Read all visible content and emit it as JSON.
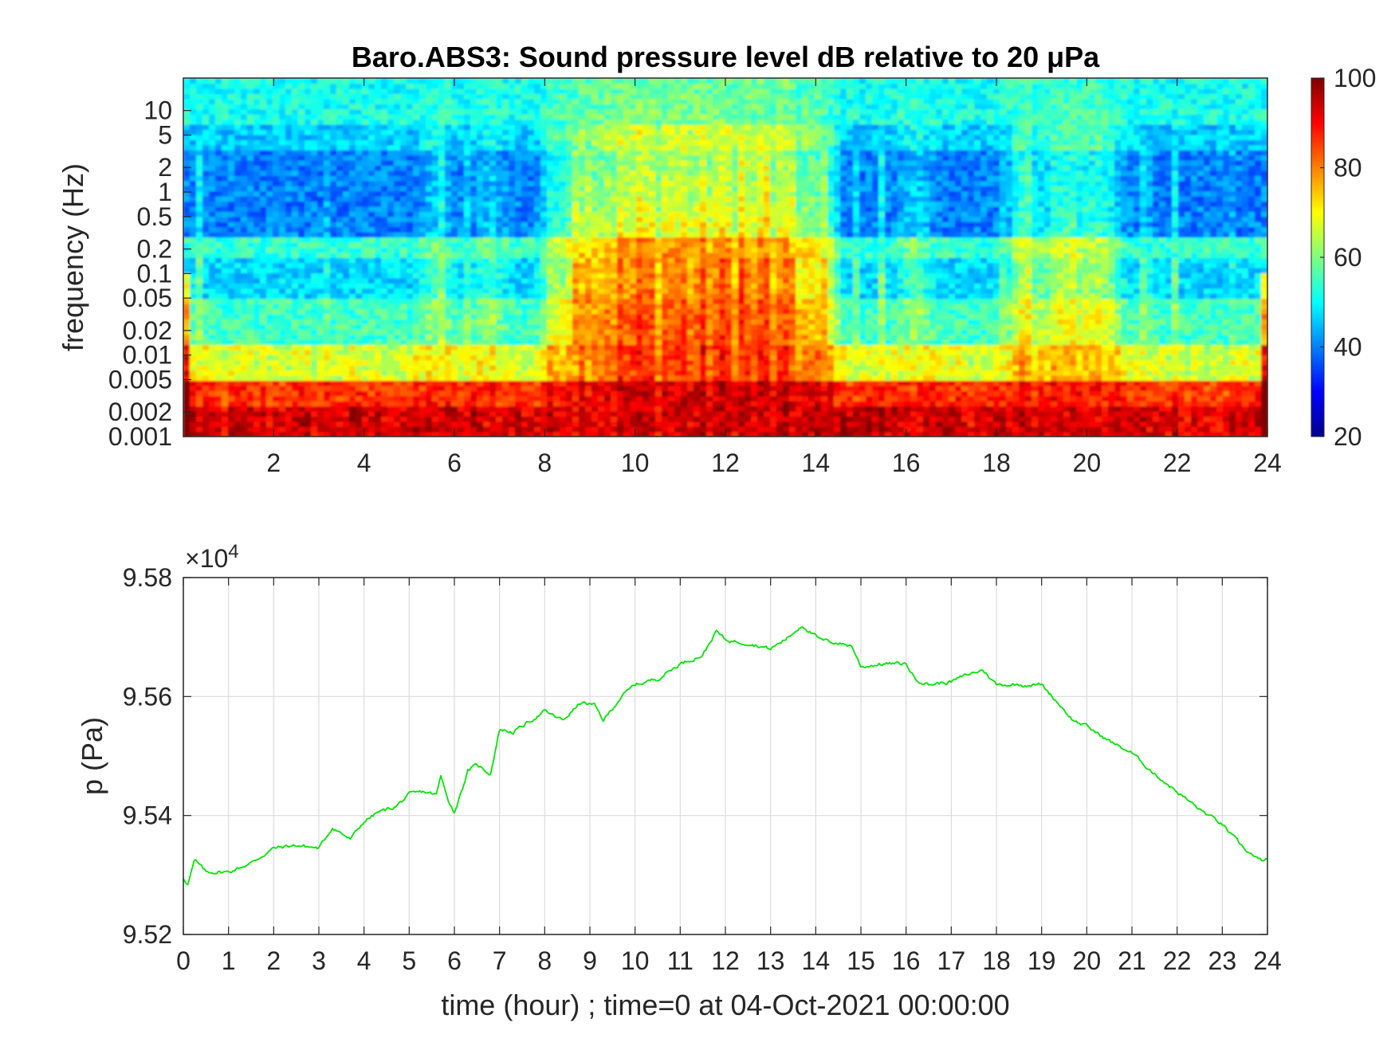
{
  "chart_data": [
    {
      "type": "heatmap",
      "title": "Baro.ABS3: Sound pressure level dB relative to 20 μPa",
      "xlabel": "",
      "ylabel": "frequency (Hz)",
      "xlim": [
        0,
        24
      ],
      "x_ticks": [
        "2",
        "4",
        "6",
        "8",
        "10",
        "12",
        "14",
        "16",
        "18",
        "20",
        "22",
        "24"
      ],
      "x_tick_values": [
        2,
        4,
        6,
        8,
        10,
        12,
        14,
        16,
        18,
        20,
        22,
        24
      ],
      "y_scale": "log",
      "ylim": [
        0.001,
        25
      ],
      "y_ticks": [
        "0.001",
        "0.002",
        "0.005",
        "0.01",
        "0.02",
        "0.05",
        "0.1",
        "0.2",
        "0.5",
        "1",
        "2",
        "5",
        "10"
      ],
      "y_tick_values": [
        0.001,
        0.002,
        0.005,
        0.01,
        0.02,
        0.05,
        0.1,
        0.2,
        0.5,
        1,
        2,
        5,
        10
      ],
      "colormap": "jet",
      "clim": [
        20,
        100
      ],
      "colorbar_ticks": [
        "20",
        "40",
        "60",
        "80",
        "100"
      ],
      "colorbar_tick_values": [
        20,
        40,
        60,
        80,
        100
      ],
      "active_window": [
        8,
        13.5
      ],
      "grid": false
    },
    {
      "type": "line",
      "xlabel": "time (hour) ; time=0 at 04-Oct-2021 00:00:00",
      "ylabel": "p (Pa)",
      "exponent_label": "×10",
      "exponent_power": "4",
      "xlim": [
        0,
        24
      ],
      "ylim": [
        95200,
        95800
      ],
      "x_ticks": [
        "0",
        "1",
        "2",
        "3",
        "4",
        "5",
        "6",
        "7",
        "8",
        "9",
        "10",
        "11",
        "12",
        "13",
        "14",
        "15",
        "16",
        "17",
        "18",
        "19",
        "20",
        "21",
        "22",
        "23",
        "24"
      ],
      "x_tick_values": [
        0,
        1,
        2,
        3,
        4,
        5,
        6,
        7,
        8,
        9,
        10,
        11,
        12,
        13,
        14,
        15,
        16,
        17,
        18,
        19,
        20,
        21,
        22,
        23,
        24
      ],
      "y_ticks": [
        "9.52",
        "9.54",
        "9.56",
        "9.58"
      ],
      "y_tick_values": [
        95200,
        95400,
        95600,
        95800
      ],
      "grid": true,
      "line_color": "#00e600",
      "series": [
        {
          "x": [
            0,
            0.1,
            0.25,
            0.5,
            1,
            1.5,
            2,
            2.5,
            3,
            3.3,
            3.7,
            4,
            4.3,
            4.7,
            5,
            5.3,
            5.6,
            5.7,
            5.9,
            6.0,
            6.3,
            6.5,
            6.8,
            7.0,
            7.3,
            7.6,
            8.0,
            8.4,
            8.8,
            9.1,
            9.3,
            9.7,
            10.0,
            10.5,
            11.0,
            11.5,
            11.8,
            12.0,
            12.5,
            13.0,
            13.4,
            13.7,
            14.1,
            14.5,
            14.8,
            15.0,
            15.5,
            16.0,
            16.2,
            16.5,
            17.0,
            17.3,
            17.7,
            18.0,
            18.5,
            19.0,
            19.3,
            19.7,
            20.0,
            20.5,
            21.0,
            21.5,
            22.0,
            22.5,
            23.0,
            23.4,
            23.8,
            24.0
          ],
          "y": [
            95295,
            95285,
            95325,
            95305,
            95305,
            95320,
            95345,
            95350,
            95345,
            95380,
            95360,
            95390,
            95405,
            95415,
            95435,
            95440,
            95435,
            95465,
            95420,
            95405,
            95475,
            95485,
            95470,
            95545,
            95540,
            95555,
            95575,
            95560,
            95590,
            95585,
            95560,
            95600,
            95620,
            95630,
            95655,
            95670,
            95710,
            95695,
            95690,
            95680,
            95700,
            95720,
            95695,
            95690,
            95685,
            95650,
            95655,
            95655,
            95630,
            95620,
            95625,
            95635,
            95645,
            95620,
            95620,
            95620,
            95595,
            95560,
            95550,
            95525,
            95505,
            95470,
            95440,
            95410,
            95385,
            95350,
            95325,
            95325
          ]
        }
      ]
    }
  ]
}
